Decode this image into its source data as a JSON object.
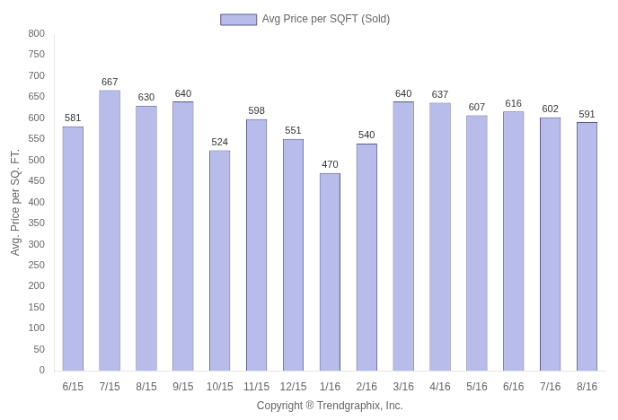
{
  "chart_data": {
    "type": "bar",
    "categories": [
      "6/15",
      "7/15",
      "8/15",
      "9/15",
      "10/15",
      "11/15",
      "12/15",
      "1/16",
      "2/16",
      "3/16",
      "4/16",
      "5/16",
      "6/16",
      "7/16",
      "8/16"
    ],
    "series": [
      {
        "name": "Avg Price per SQFT (Sold)",
        "color": "#b8bceb",
        "values": [
          581,
          667,
          630,
          640,
          524,
          598,
          551,
          470,
          540,
          640,
          637,
          607,
          616,
          602,
          591
        ]
      }
    ],
    "xlabel": "Copyright ® Trendgraphix, Inc.",
    "ylabel": "Avg. Price per SQ. FT.",
    "ylim": [
      0,
      800
    ],
    "yticks": [
      0,
      50,
      100,
      150,
      200,
      250,
      300,
      350,
      400,
      450,
      500,
      550,
      600,
      650,
      700,
      750,
      800
    ],
    "grid": false,
    "legend": "top",
    "data_labels": true
  }
}
